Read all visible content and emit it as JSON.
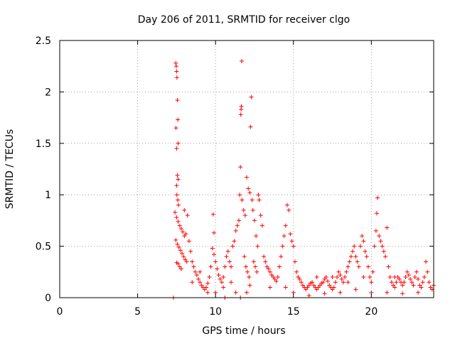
{
  "chart_data": {
    "type": "scatter",
    "title": "Day 206 of 2011, SRMTID for receiver clgo",
    "xlabel": "GPS time / hours",
    "ylabel": "SRMTID / TECUs",
    "xlim": [
      0,
      24
    ],
    "ylim": [
      0,
      2.5
    ],
    "xticks": [
      0,
      5,
      10,
      15,
      20
    ],
    "yticks": [
      0,
      0.5,
      1,
      1.5,
      2,
      2.5
    ],
    "xtick_labels": [
      "0",
      "5",
      "10",
      "15",
      "20"
    ],
    "ytick_labels": [
      "0",
      "0.5",
      "1",
      "1.5",
      "2",
      "2.5"
    ],
    "grid": true,
    "marker": "+",
    "color": "#ff0000",
    "points": [
      [
        7.3,
        0.0
      ],
      [
        10.6,
        0.0
      ],
      [
        11.6,
        0.0
      ],
      [
        7.45,
        2.28
      ],
      [
        7.48,
        2.25
      ],
      [
        7.5,
        2.2
      ],
      [
        7.52,
        2.14
      ],
      [
        7.55,
        1.92
      ],
      [
        7.58,
        1.73
      ],
      [
        7.46,
        1.65
      ],
      [
        7.6,
        1.5
      ],
      [
        7.5,
        1.45
      ],
      [
        7.55,
        1.19
      ],
      [
        7.6,
        1.15
      ],
      [
        7.5,
        1.09
      ],
      [
        7.52,
        1.0
      ],
      [
        7.58,
        0.95
      ],
      [
        7.62,
        0.9
      ],
      [
        7.4,
        0.83
      ],
      [
        7.5,
        0.78
      ],
      [
        7.6,
        0.74
      ],
      [
        7.7,
        0.7
      ],
      [
        7.8,
        0.67
      ],
      [
        7.9,
        0.64
      ],
      [
        8.0,
        0.6
      ],
      [
        8.1,
        0.62
      ],
      [
        7.45,
        0.56
      ],
      [
        7.55,
        0.52
      ],
      [
        7.65,
        0.49
      ],
      [
        7.75,
        0.46
      ],
      [
        7.85,
        0.43
      ],
      [
        7.95,
        0.4
      ],
      [
        8.05,
        0.37
      ],
      [
        8.15,
        0.35
      ],
      [
        7.5,
        0.34
      ],
      [
        7.6,
        0.33
      ],
      [
        7.7,
        0.3
      ],
      [
        7.8,
        0.28
      ],
      [
        8.0,
        0.85
      ],
      [
        8.2,
        0.8
      ],
      [
        8.3,
        0.55
      ],
      [
        8.4,
        0.45
      ],
      [
        8.5,
        0.35
      ],
      [
        8.6,
        0.3
      ],
      [
        8.7,
        0.25
      ],
      [
        8.8,
        0.22
      ],
      [
        8.9,
        0.18
      ],
      [
        9.0,
        0.15
      ],
      [
        9.1,
        0.12
      ],
      [
        9.2,
        0.1
      ],
      [
        9.3,
        0.08
      ],
      [
        9.4,
        0.1
      ],
      [
        9.5,
        0.14
      ],
      [
        9.6,
        0.2
      ],
      [
        9.7,
        0.3
      ],
      [
        9.8,
        0.48
      ],
      [
        9.9,
        0.42
      ],
      [
        10.0,
        0.35
      ],
      [
        10.1,
        0.28
      ],
      [
        10.2,
        0.22
      ],
      [
        10.3,
        0.18
      ],
      [
        10.4,
        0.15
      ],
      [
        9.85,
        0.81
      ],
      [
        9.9,
        0.63
      ],
      [
        10.5,
        0.2
      ],
      [
        10.6,
        0.3
      ],
      [
        10.7,
        0.4
      ],
      [
        10.8,
        0.45
      ],
      [
        10.9,
        0.35
      ],
      [
        11.0,
        0.3
      ],
      [
        11.1,
        0.5
      ],
      [
        11.2,
        0.55
      ],
      [
        11.3,
        0.65
      ],
      [
        11.4,
        0.7
      ],
      [
        11.5,
        0.75
      ],
      [
        11.55,
        1.0
      ],
      [
        11.6,
        1.27
      ],
      [
        11.62,
        1.78
      ],
      [
        11.64,
        1.83
      ],
      [
        11.66,
        1.86
      ],
      [
        11.68,
        2.3
      ],
      [
        11.7,
        0.95
      ],
      [
        11.8,
        0.85
      ],
      [
        11.9,
        0.8
      ],
      [
        12.0,
        1.17
      ],
      [
        12.1,
        1.06
      ],
      [
        12.2,
        1.02
      ],
      [
        12.3,
        1.95
      ],
      [
        12.25,
        1.66
      ],
      [
        12.35,
        0.95
      ],
      [
        12.4,
        0.85
      ],
      [
        12.5,
        0.75
      ],
      [
        12.6,
        0.6
      ],
      [
        12.7,
        0.5
      ],
      [
        12.75,
        1.0
      ],
      [
        12.8,
        0.95
      ],
      [
        12.9,
        0.8
      ],
      [
        13.0,
        0.7
      ],
      [
        11.85,
        0.4
      ],
      [
        11.95,
        0.3
      ],
      [
        12.05,
        0.25
      ],
      [
        12.15,
        0.2
      ],
      [
        12.45,
        0.35
      ],
      [
        12.55,
        0.3
      ],
      [
        12.65,
        0.25
      ],
      [
        13.1,
        0.4
      ],
      [
        13.2,
        0.35
      ],
      [
        13.3,
        0.3
      ],
      [
        13.4,
        0.28
      ],
      [
        13.5,
        0.25
      ],
      [
        13.6,
        0.22
      ],
      [
        13.7,
        0.2
      ],
      [
        13.8,
        0.18
      ],
      [
        13.9,
        0.16
      ],
      [
        14.0,
        0.2
      ],
      [
        14.1,
        0.3
      ],
      [
        14.2,
        0.4
      ],
      [
        14.3,
        0.5
      ],
      [
        14.4,
        0.6
      ],
      [
        14.5,
        0.7
      ],
      [
        14.6,
        0.9
      ],
      [
        14.7,
        0.85
      ],
      [
        14.8,
        0.62
      ],
      [
        14.9,
        0.55
      ],
      [
        15.0,
        0.5
      ],
      [
        15.1,
        0.35
      ],
      [
        15.2,
        0.25
      ],
      [
        15.3,
        0.2
      ],
      [
        15.4,
        0.18
      ],
      [
        15.5,
        0.15
      ],
      [
        15.6,
        0.12
      ],
      [
        15.7,
        0.1
      ],
      [
        15.8,
        0.08
      ],
      [
        15.9,
        0.1
      ],
      [
        16.0,
        0.12
      ],
      [
        16.1,
        0.14
      ],
      [
        16.2,
        0.15
      ],
      [
        16.3,
        0.12
      ],
      [
        16.4,
        0.1
      ],
      [
        16.5,
        0.08
      ],
      [
        16.6,
        0.1
      ],
      [
        16.7,
        0.12
      ],
      [
        16.8,
        0.14
      ],
      [
        16.9,
        0.15
      ],
      [
        17.0,
        0.18
      ],
      [
        17.1,
        0.2
      ],
      [
        17.2,
        0.16
      ],
      [
        17.3,
        0.12
      ],
      [
        17.4,
        0.1
      ],
      [
        17.5,
        0.08
      ],
      [
        17.6,
        0.1
      ],
      [
        17.7,
        0.15
      ],
      [
        17.8,
        0.2
      ],
      [
        17.9,
        0.25
      ],
      [
        18.0,
        0.22
      ],
      [
        18.1,
        0.18
      ],
      [
        18.2,
        0.15
      ],
      [
        18.3,
        0.2
      ],
      [
        18.4,
        0.25
      ],
      [
        18.5,
        0.3
      ],
      [
        18.6,
        0.35
      ],
      [
        18.7,
        0.4
      ],
      [
        18.8,
        0.45
      ],
      [
        18.9,
        0.5
      ],
      [
        19.0,
        0.4
      ],
      [
        19.1,
        0.35
      ],
      [
        19.2,
        0.3
      ],
      [
        19.3,
        0.5
      ],
      [
        19.4,
        0.6
      ],
      [
        19.5,
        0.55
      ],
      [
        19.6,
        0.45
      ],
      [
        19.7,
        0.4
      ],
      [
        19.8,
        0.3
      ],
      [
        19.9,
        0.2
      ],
      [
        20.0,
        0.15
      ],
      [
        20.1,
        0.25
      ],
      [
        20.2,
        0.5
      ],
      [
        20.3,
        0.65
      ],
      [
        20.35,
        0.82
      ],
      [
        20.4,
        0.97
      ],
      [
        20.5,
        0.6
      ],
      [
        20.6,
        0.55
      ],
      [
        20.7,
        0.5
      ],
      [
        20.8,
        0.45
      ],
      [
        20.9,
        0.4
      ],
      [
        21.0,
        0.68
      ],
      [
        21.1,
        0.3
      ],
      [
        21.2,
        0.2
      ],
      [
        21.3,
        0.15
      ],
      [
        21.4,
        0.12
      ],
      [
        21.5,
        0.1
      ],
      [
        21.6,
        0.15
      ],
      [
        21.7,
        0.2
      ],
      [
        21.8,
        0.18
      ],
      [
        21.9,
        0.15
      ],
      [
        22.0,
        0.12
      ],
      [
        22.1,
        0.15
      ],
      [
        22.2,
        0.2
      ],
      [
        22.3,
        0.25
      ],
      [
        22.4,
        0.22
      ],
      [
        22.5,
        0.18
      ],
      [
        22.6,
        0.15
      ],
      [
        22.7,
        0.12
      ],
      [
        22.8,
        0.2
      ],
      [
        22.9,
        0.25
      ],
      [
        23.0,
        0.18
      ],
      [
        23.1,
        0.12
      ],
      [
        23.2,
        0.1
      ],
      [
        23.3,
        0.15
      ],
      [
        23.4,
        0.2
      ],
      [
        23.5,
        0.35
      ],
      [
        23.6,
        0.25
      ],
      [
        23.7,
        0.15
      ],
      [
        23.8,
        0.1
      ],
      [
        23.9,
        0.08
      ],
      [
        24.0,
        0.12
      ],
      [
        8.5,
        0.15
      ],
      [
        9.0,
        0.25
      ],
      [
        9.5,
        0.05
      ],
      [
        10.0,
        0.05
      ],
      [
        10.5,
        0.1
      ],
      [
        11.0,
        0.15
      ],
      [
        11.3,
        0.05
      ],
      [
        12.0,
        0.05
      ],
      [
        12.2,
        0.12
      ],
      [
        13.5,
        0.1
      ],
      [
        14.5,
        0.1
      ],
      [
        15.0,
        0.05
      ],
      [
        16.0,
        0.02
      ],
      [
        17.0,
        0.04
      ],
      [
        18.0,
        0.05
      ],
      [
        19.0,
        0.08
      ],
      [
        20.0,
        0.05
      ],
      [
        21.0,
        0.05
      ],
      [
        22.0,
        0.04
      ],
      [
        23.0,
        0.05
      ],
      [
        16.5,
        0.2
      ],
      [
        17.5,
        0.2
      ],
      [
        18.5,
        0.15
      ],
      [
        19.5,
        0.2
      ],
      [
        21.5,
        0.2
      ]
    ]
  }
}
